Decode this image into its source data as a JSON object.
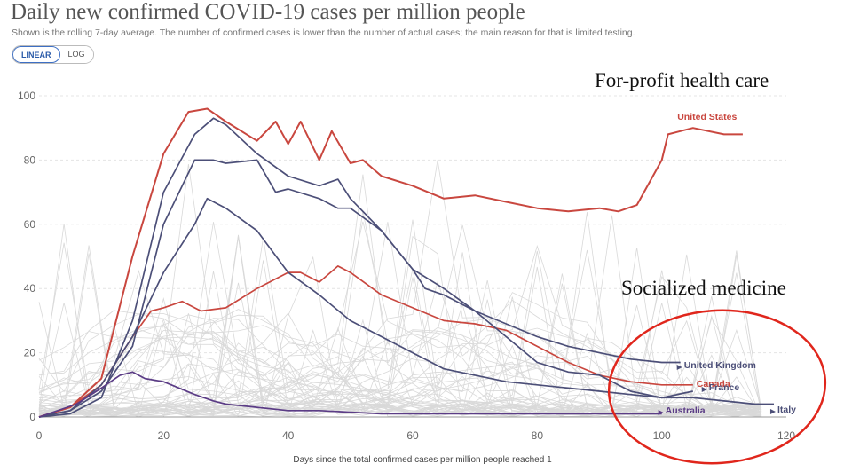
{
  "header": {
    "title": "Daily new confirmed COVID-19 cases per million people",
    "subtitle": "Shown is the rolling 7-day average. The number of confirmed cases is lower than the number of actual cases; the main reason for that is limited testing."
  },
  "scale_toggle": {
    "linear_label": "LINEAR",
    "log_label": "LOG",
    "selected": "LINEAR"
  },
  "annotations": {
    "top": "For-profit health care",
    "bottom": "Socialized medicine"
  },
  "colors": {
    "red": "#c9473f",
    "navy": "#4c4f78",
    "purple": "#5b3c86",
    "background_lines": "#d9d9d9",
    "circle": "#e0261c"
  },
  "chart_data": {
    "type": "line",
    "xlabel": "Days since the total confirmed cases per million people reached 1",
    "ylabel": "",
    "xlim": [
      0,
      120
    ],
    "ylim": [
      0,
      100
    ],
    "x_ticks": [
      "0",
      "20",
      "40",
      "60",
      "80",
      "100",
      "120"
    ],
    "y_ticks": [
      "0",
      "20",
      "40",
      "60",
      "80",
      "100"
    ],
    "grid": true,
    "series": [
      {
        "name": "United States",
        "color": "#c9473f",
        "x": [
          0,
          5,
          10,
          15,
          20,
          24,
          27,
          30,
          35,
          38,
          40,
          42,
          45,
          47,
          50,
          52,
          55,
          60,
          65,
          70,
          75,
          80,
          85,
          90,
          93,
          96,
          100,
          101,
          105,
          110,
          113
        ],
        "y": [
          0,
          3,
          12,
          50,
          82,
          95,
          96,
          92,
          86,
          92,
          85,
          92,
          80,
          89,
          79,
          80,
          75,
          72,
          68,
          69,
          67,
          65,
          64,
          65,
          64,
          66,
          80,
          88,
          90,
          88,
          88
        ]
      },
      {
        "name": "Canada",
        "color": "#c9473f",
        "x": [
          0,
          5,
          10,
          15,
          18,
          20,
          23,
          26,
          30,
          35,
          40,
          42,
          45,
          48,
          50,
          55,
          60,
          65,
          70,
          75,
          80,
          85,
          90,
          95,
          100,
          105
        ],
        "y": [
          0,
          3,
          10,
          25,
          33,
          34,
          36,
          33,
          34,
          40,
          45,
          45,
          42,
          47,
          45,
          38,
          34,
          30,
          29,
          27,
          22,
          17,
          13,
          11,
          10,
          10
        ]
      },
      {
        "name": "United Kingdom",
        "color": "#4c4f78",
        "x": [
          0,
          5,
          10,
          15,
          20,
          25,
          28,
          30,
          35,
          38,
          40,
          45,
          48,
          50,
          55,
          60,
          65,
          70,
          75,
          80,
          85,
          90,
          95,
          100,
          103
        ],
        "y": [
          0,
          2,
          8,
          22,
          60,
          80,
          80,
          79,
          80,
          70,
          71,
          68,
          65,
          65,
          58,
          46,
          40,
          33,
          29,
          25,
          22,
          20,
          18,
          17,
          17
        ]
      },
      {
        "name": "France",
        "color": "#4c4f78",
        "x": [
          0,
          5,
          10,
          15,
          20,
          25,
          28,
          30,
          35,
          40,
          45,
          48,
          50,
          55,
          60,
          62,
          65,
          70,
          75,
          80,
          85,
          90,
          95,
          100,
          105
        ],
        "y": [
          0,
          1,
          6,
          30,
          70,
          88,
          93,
          91,
          82,
          75,
          72,
          74,
          68,
          58,
          46,
          40,
          38,
          33,
          25,
          17,
          14,
          13,
          8,
          6,
          8
        ]
      },
      {
        "name": "Italy",
        "color": "#4c4f78",
        "x": [
          0,
          5,
          10,
          15,
          20,
          25,
          27,
          30,
          35,
          40,
          45,
          50,
          55,
          60,
          65,
          70,
          75,
          80,
          85,
          90,
          95,
          100,
          105,
          110,
          115,
          118
        ],
        "y": [
          0,
          2,
          10,
          25,
          45,
          60,
          68,
          65,
          58,
          45,
          38,
          30,
          25,
          20,
          15,
          13,
          11,
          10,
          9,
          8,
          7,
          6,
          6,
          5,
          4,
          4
        ]
      },
      {
        "name": "Australia",
        "color": "#5b3c86",
        "x": [
          0,
          3,
          6,
          10,
          13,
          15,
          17,
          20,
          25,
          28,
          30,
          35,
          40,
          45,
          50,
          55,
          60,
          70,
          80,
          90,
          100
        ],
        "y": [
          0,
          2,
          4,
          9,
          13,
          14,
          12,
          11,
          7,
          5,
          4,
          3,
          2,
          2,
          1.5,
          1,
          1,
          1,
          1,
          1,
          1
        ]
      }
    ]
  }
}
